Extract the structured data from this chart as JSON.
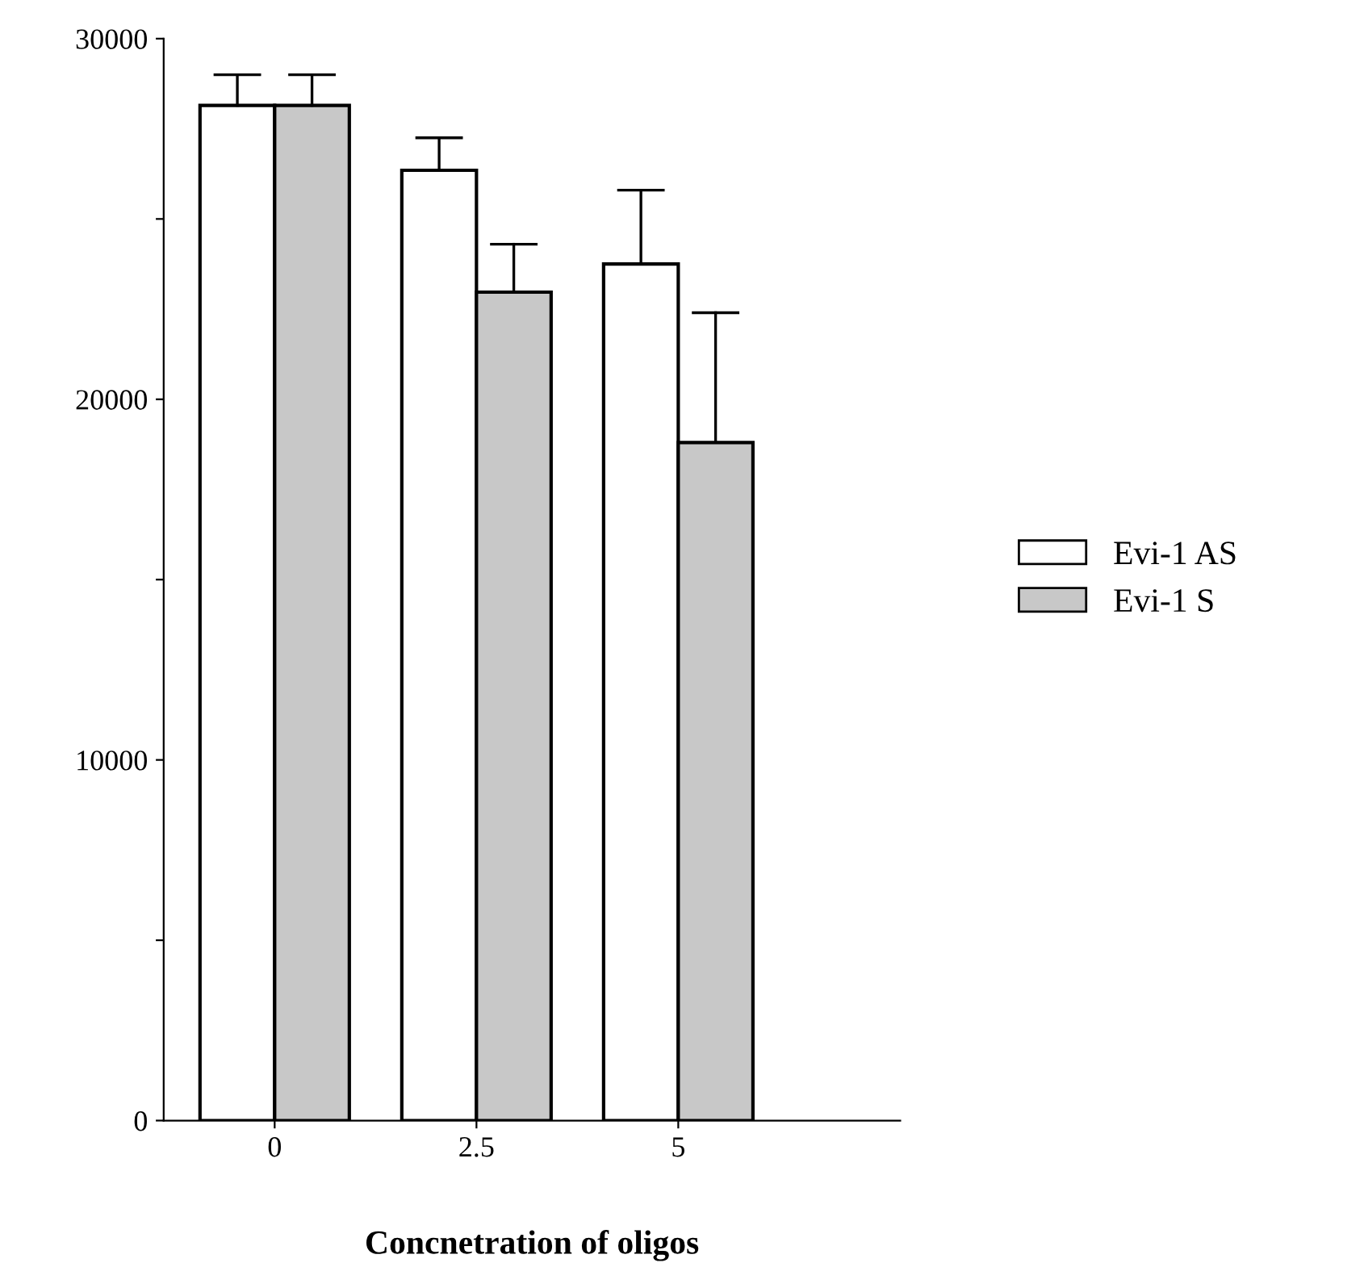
{
  "chart_data": {
    "type": "bar",
    "xlabel": "Concnetration of oligos",
    "categories": [
      "0",
      "2.5",
      "5"
    ],
    "series": [
      {
        "name": "Evi-1 AS",
        "color": "#ffffff",
        "values": [
          28150,
          26350,
          23750
        ],
        "errors": [
          [
            28150,
            29000
          ],
          [
            26350,
            27250
          ],
          [
            23750,
            25800
          ]
        ]
      },
      {
        "name": "Evi-1 S",
        "color": "#c8c8c8",
        "values": [
          28150,
          22970,
          18800
        ],
        "errors": [
          [
            28150,
            29000
          ],
          [
            22970,
            24300
          ],
          [
            18800,
            22400
          ]
        ]
      }
    ],
    "ylim": [
      0,
      30000
    ],
    "yticks": [
      0,
      {
        "value": 5000,
        "label": null
      },
      10000,
      {
        "value": 15000,
        "label": null
      },
      20000,
      {
        "value": 25000,
        "label": null
      },
      30000
    ],
    "legend": "right",
    "grid": false
  }
}
